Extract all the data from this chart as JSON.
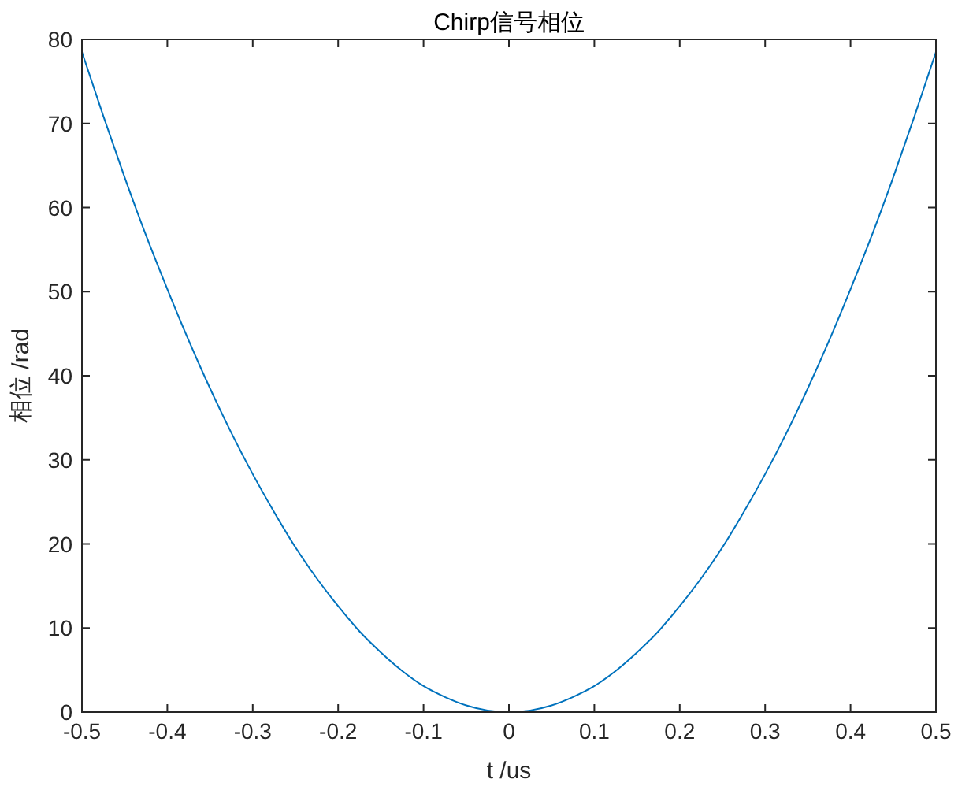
{
  "chart_data": {
    "type": "line",
    "title": "Chirp信号相位",
    "xlabel": "t /us",
    "ylabel": "相位 /rad",
    "x": [
      -0.5,
      -0.475,
      -0.45,
      -0.425,
      -0.4,
      -0.375,
      -0.35,
      -0.325,
      -0.3,
      -0.275,
      -0.25,
      -0.225,
      -0.2,
      -0.175,
      -0.15,
      -0.125,
      -0.1,
      -0.075,
      -0.05,
      -0.025,
      0,
      0.025,
      0.05,
      0.075,
      0.1,
      0.125,
      0.15,
      0.175,
      0.2,
      0.225,
      0.25,
      0.275,
      0.3,
      0.325,
      0.35,
      0.375,
      0.4,
      0.425,
      0.45,
      0.475,
      0.5
    ],
    "series": [
      {
        "color": "#0072bd",
        "values": [
          78.5,
          70.9,
          63.6,
          56.7,
          50.3,
          44.2,
          38.5,
          33.2,
          28.3,
          23.8,
          19.6,
          15.9,
          12.6,
          9.6,
          7.1,
          4.9,
          3.1,
          1.8,
          0.8,
          0.2,
          0,
          0.2,
          0.8,
          1.8,
          3.1,
          4.9,
          7.1,
          9.6,
          12.6,
          15.9,
          19.6,
          23.8,
          28.3,
          33.2,
          38.5,
          44.2,
          50.3,
          56.7,
          63.6,
          70.9,
          78.5
        ]
      }
    ],
    "xlim": [
      -0.5,
      0.5
    ],
    "ylim": [
      0,
      80
    ],
    "xticks": [
      -0.5,
      -0.4,
      -0.3,
      -0.2,
      -0.1,
      0,
      0.1,
      0.2,
      0.3,
      0.4,
      0.5
    ],
    "yticks": [
      0,
      10,
      20,
      30,
      40,
      50,
      60,
      70,
      80
    ],
    "grid": false,
    "marker": "none",
    "line_style": "solid"
  }
}
